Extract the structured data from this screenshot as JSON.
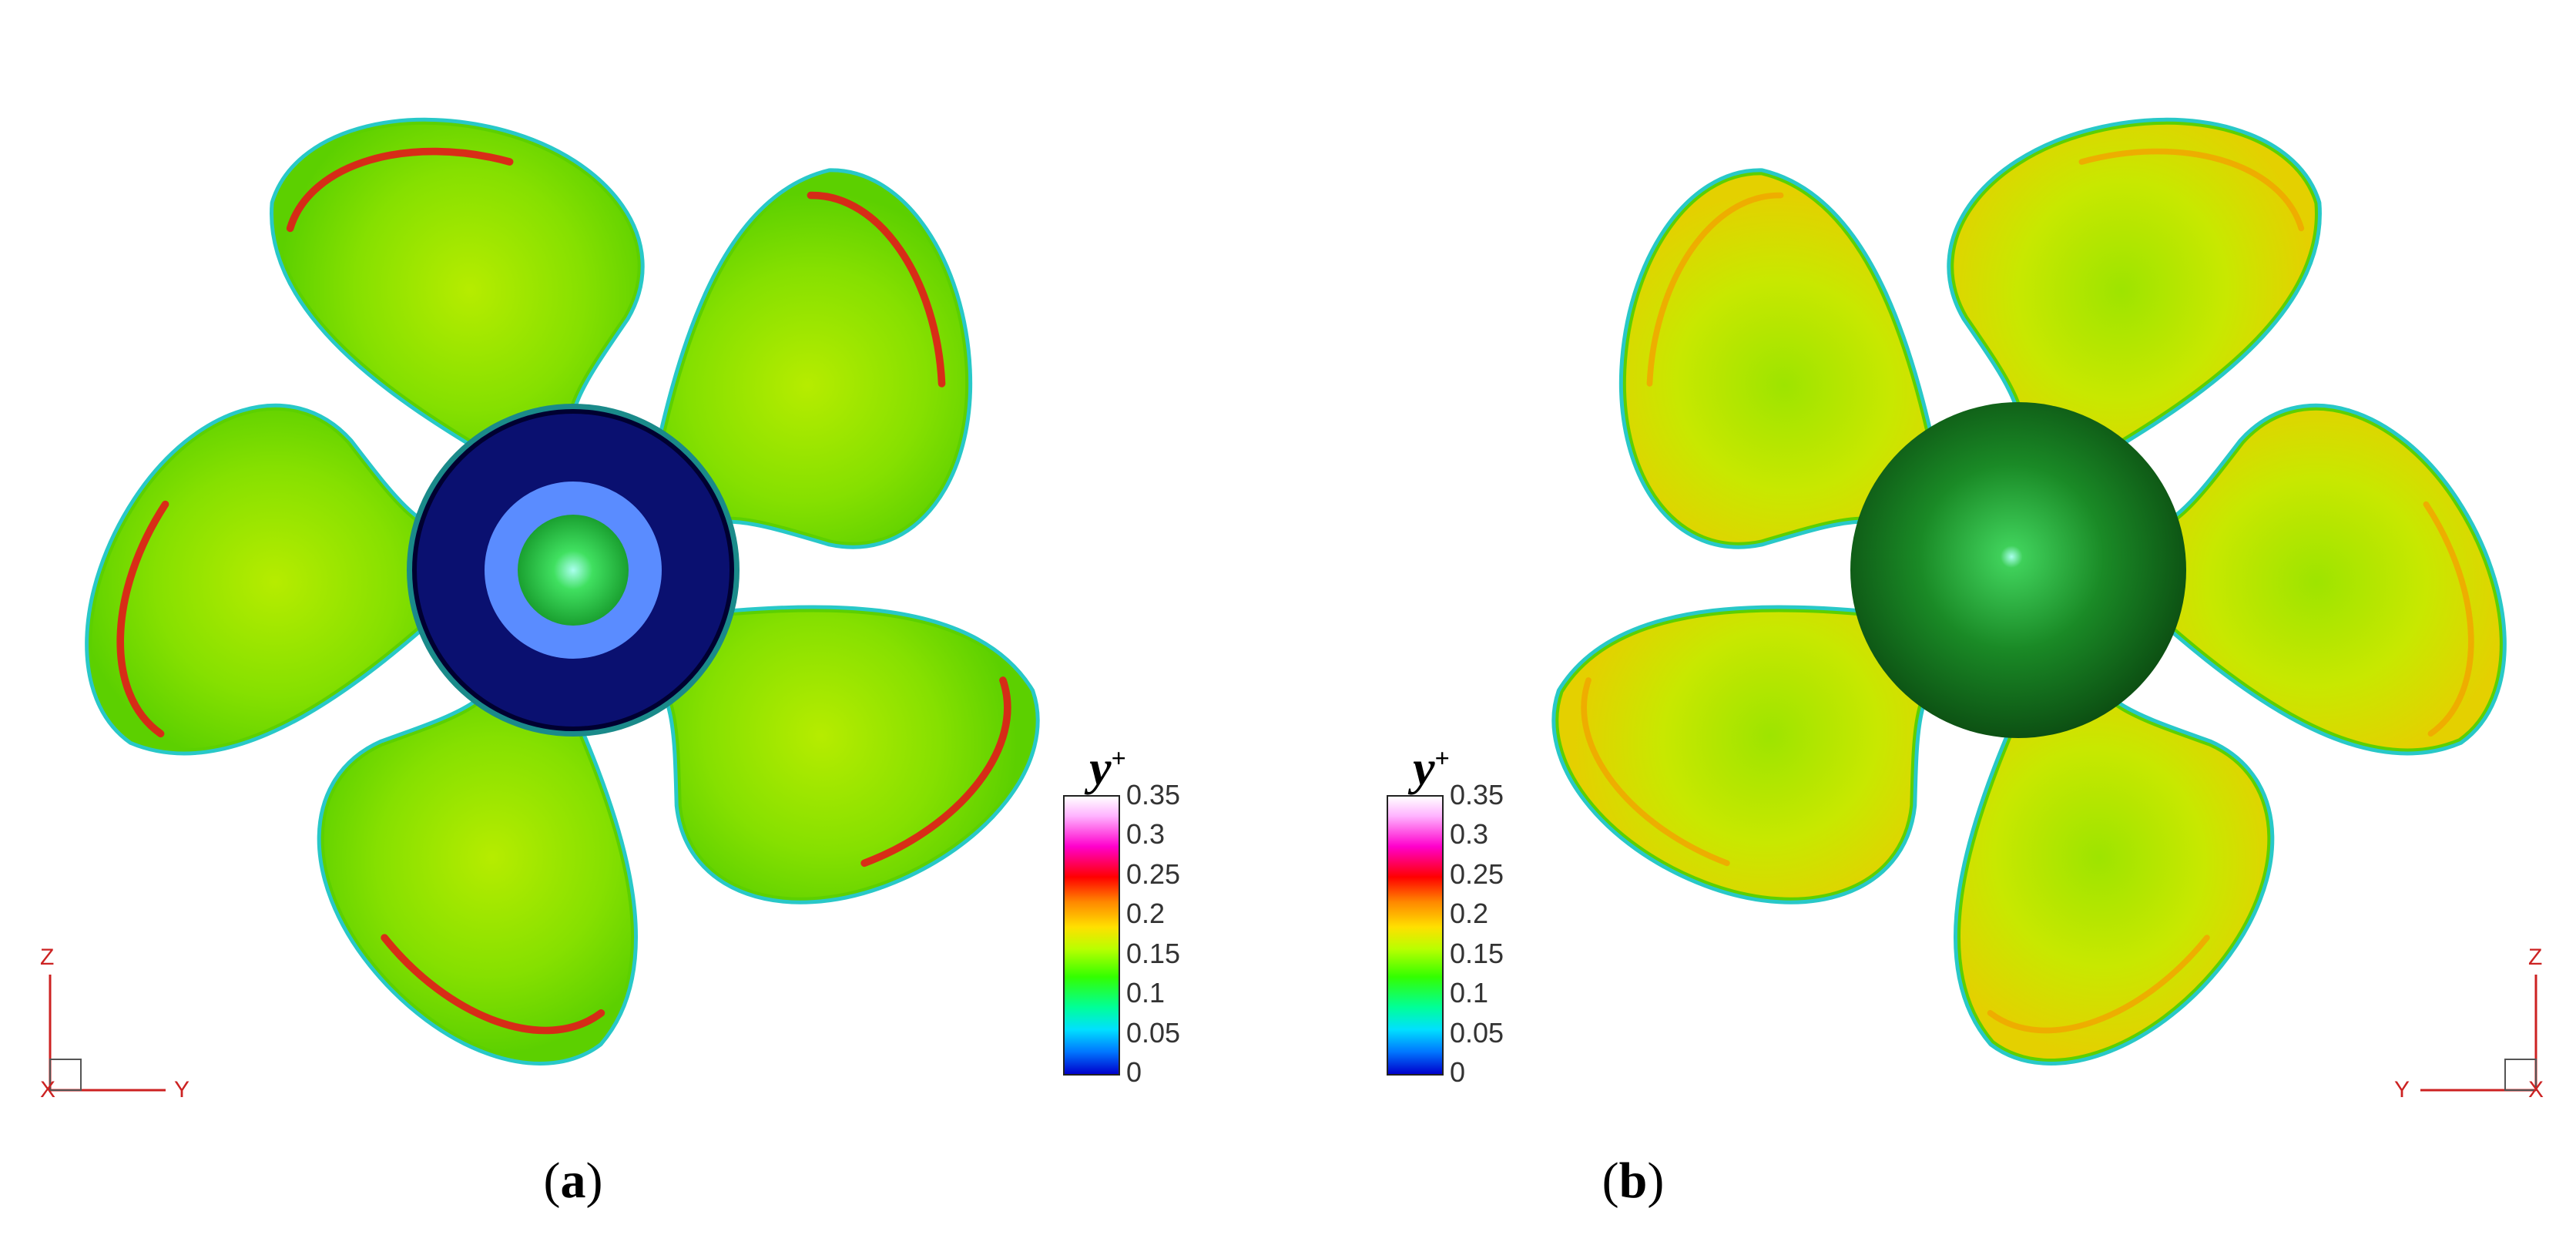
{
  "panels": [
    {
      "id": "a",
      "caption_open": "(",
      "caption_letter": "a",
      "caption_close": ")",
      "view": "suction-side",
      "hub": "cut-section",
      "axis_labels": {
        "vertical": "Z",
        "horizontal": "Y",
        "out": "X"
      }
    },
    {
      "id": "b",
      "caption_open": "(",
      "caption_letter": "b",
      "caption_close": ")",
      "view": "pressure-side",
      "hub": "spherical-cap",
      "axis_labels": {
        "vertical": "Z",
        "horizontal": "Y",
        "out": "X"
      }
    }
  ],
  "legend": {
    "title": "y",
    "title_superscript": "+",
    "ticks": [
      "0.35",
      "0.3",
      "0.25",
      "0.2",
      "0.15",
      "0.1",
      "0.05",
      "0"
    ]
  },
  "colors": {
    "blade_green": "#7ee000",
    "blade_yellow": "#d8e800",
    "edge_red": "#e21a1a",
    "edge_cyan": "#28c8c8",
    "hub_navy": "#0a1070",
    "hub_ring": "#5a8cff",
    "hub_green": "#147a1c",
    "axis_red": "#cc2222"
  }
}
